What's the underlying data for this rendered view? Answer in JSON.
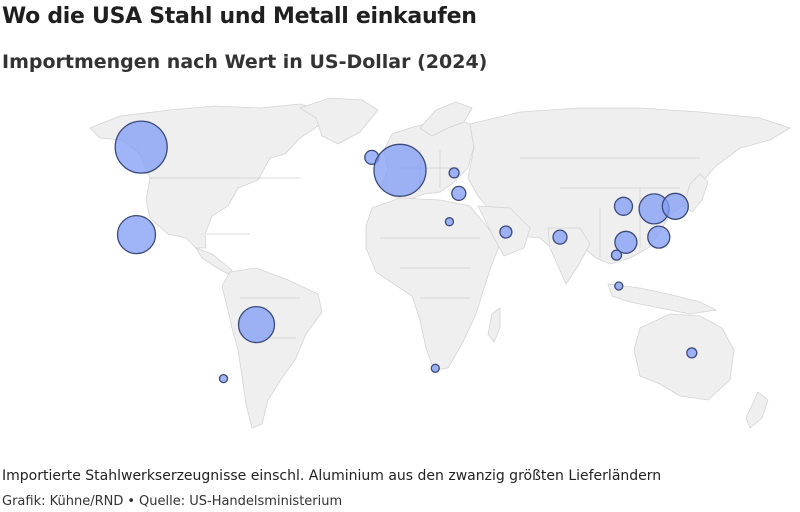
{
  "header": {
    "title": "Wo die USA Stahl und Metall einkaufen",
    "subtitle": "Importmengen nach Wert in US-Dollar (2024)"
  },
  "footer": {
    "note": "Importierte Stahlwerkserzeugnisse einschl. Aluminium aus den zwanzig größten Lieferländern",
    "credit_author": "Grafik: Kühne/RND",
    "credit_separator": "•",
    "credit_source": "Quelle: US-Handelsministerium"
  },
  "colors": {
    "bubble_fill": "#7f9cf5",
    "bubble_stroke": "#3c4a7a",
    "land": "#efefef"
  },
  "map_data": {
    "type": "bubble-map",
    "bubbles": [
      {
        "id": "canada",
        "lon": -100,
        "lat": 57,
        "size": 26
      },
      {
        "id": "mexico",
        "lon": -102,
        "lat": 23,
        "size": 19
      },
      {
        "id": "brazil",
        "lon": -51,
        "lat": -12,
        "size": 18
      },
      {
        "id": "argentina",
        "lon": -65,
        "lat": -33,
        "size": 4
      },
      {
        "id": "uk",
        "lon": -2,
        "lat": 53,
        "size": 7
      },
      {
        "id": "europe",
        "lon": 10,
        "lat": 48,
        "size": 26
      },
      {
        "id": "ukraine",
        "lon": 33,
        "lat": 47,
        "size": 5
      },
      {
        "id": "turkey",
        "lon": 35,
        "lat": 39,
        "size": 7
      },
      {
        "id": "egypt",
        "lon": 31,
        "lat": 28,
        "size": 4
      },
      {
        "id": "uae",
        "lon": 55,
        "lat": 24,
        "size": 6
      },
      {
        "id": "india",
        "lon": 78,
        "lat": 22,
        "size": 7
      },
      {
        "id": "china-west",
        "lon": 105,
        "lat": 34,
        "size": 9
      },
      {
        "id": "china-east",
        "lon": 118,
        "lat": 33,
        "size": 15
      },
      {
        "id": "japan",
        "lon": 127,
        "lat": 34,
        "size": 13
      },
      {
        "id": "vietnam",
        "lon": 106,
        "lat": 20,
        "size": 11
      },
      {
        "id": "taiwan",
        "lon": 120,
        "lat": 22,
        "size": 11
      },
      {
        "id": "thailand",
        "lon": 102,
        "lat": 15,
        "size": 5
      },
      {
        "id": "malaysia",
        "lon": 103,
        "lat": 3,
        "size": 4
      },
      {
        "id": "south-africa",
        "lon": 25,
        "lat": -29,
        "size": 4
      },
      {
        "id": "australia",
        "lon": 134,
        "lat": -23,
        "size": 5
      }
    ]
  }
}
